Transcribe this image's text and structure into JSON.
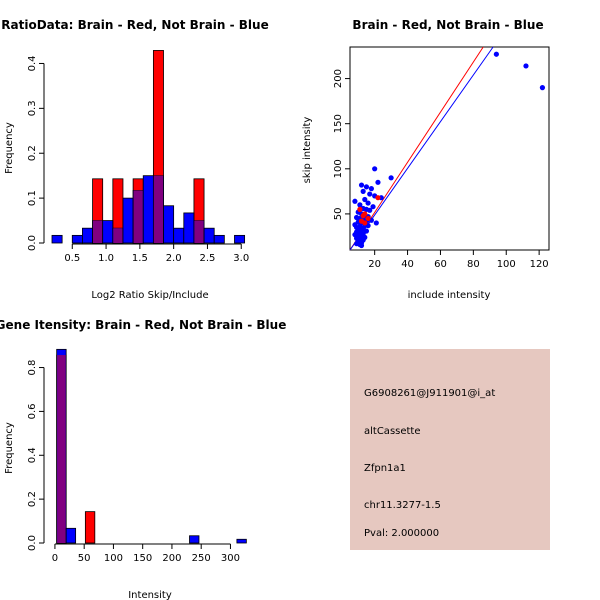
{
  "colors": {
    "brain": "#ff0000",
    "not_brain": "#0000ff",
    "overlap": "#800080",
    "info_bg": "#e6c8c0",
    "pval": "#cc0000"
  },
  "chart_data": [
    {
      "id": "ratio_hist",
      "type": "bar",
      "title": "RatioData: Brain - Red, Not Brain - Blue",
      "xlabel": "Log2 Ratio Skip/Include",
      "ylabel": "Frequency",
      "xlim": [
        0.2,
        3.1
      ],
      "ylim": [
        0,
        0.43
      ],
      "xticks": [
        0.5,
        1.0,
        1.5,
        2.0,
        2.5,
        3.0
      ],
      "xtick_labels": [
        "0.5",
        "1.0",
        "1.5",
        "2.0",
        "2.5",
        "3.0"
      ],
      "yticks": [
        0.0,
        0.1,
        0.2,
        0.3,
        0.4
      ],
      "ytick_labels": [
        "0.0",
        "0.1",
        "0.2",
        "0.3",
        "0.4"
      ],
      "bin_width": 0.15,
      "series": [
        {
          "name": "Brain",
          "color_key": "brain",
          "bins": [
            {
              "x0": 0.8,
              "value": 0.143
            },
            {
              "x0": 1.1,
              "value": 0.143
            },
            {
              "x0": 1.4,
              "value": 0.143
            },
            {
              "x0": 1.7,
              "value": 0.429
            },
            {
              "x0": 2.3,
              "value": 0.143
            }
          ]
        },
        {
          "name": "Not Brain",
          "color_key": "not_brain",
          "bins": [
            {
              "x0": 0.2,
              "value": 0.017
            },
            {
              "x0": 0.5,
              "value": 0.017
            },
            {
              "x0": 0.65,
              "value": 0.033
            },
            {
              "x0": 0.8,
              "value": 0.05
            },
            {
              "x0": 0.95,
              "value": 0.05
            },
            {
              "x0": 1.1,
              "value": 0.033
            },
            {
              "x0": 1.25,
              "value": 0.1
            },
            {
              "x0": 1.4,
              "value": 0.117
            },
            {
              "x0": 1.55,
              "value": 0.15
            },
            {
              "x0": 1.7,
              "value": 0.15
            },
            {
              "x0": 1.85,
              "value": 0.083
            },
            {
              "x0": 2.0,
              "value": 0.033
            },
            {
              "x0": 2.15,
              "value": 0.067
            },
            {
              "x0": 2.3,
              "value": 0.05
            },
            {
              "x0": 2.45,
              "value": 0.033
            },
            {
              "x0": 2.6,
              "value": 0.017
            },
            {
              "x0": 2.9,
              "value": 0.017
            }
          ]
        }
      ]
    },
    {
      "id": "intensity_scatter",
      "type": "scatter",
      "title": "Brain - Red, Not Brain - Blue",
      "xlabel": "include intensity",
      "ylabel": "skip intensity",
      "xlim": [
        5,
        126
      ],
      "ylim": [
        10,
        235
      ],
      "xticks": [
        20,
        40,
        60,
        80,
        100,
        120
      ],
      "xtick_labels": [
        "20",
        "40",
        "60",
        "80",
        "100",
        "120"
      ],
      "yticks": [
        50,
        100,
        150,
        200
      ],
      "ytick_labels": [
        "50",
        "100",
        "150",
        "200"
      ],
      "series": [
        {
          "name": "Not Brain",
          "color_key": "not_brain",
          "points": [
            [
              94,
              227
            ],
            [
              112,
              214
            ],
            [
              122,
              190
            ],
            [
              20,
              100
            ],
            [
              30,
              90
            ],
            [
              22,
              85
            ],
            [
              12,
              82
            ],
            [
              15,
              80
            ],
            [
              18,
              78
            ],
            [
              13,
              75
            ],
            [
              17,
              72
            ],
            [
              20,
              70
            ],
            [
              24,
              68
            ],
            [
              14,
              66
            ],
            [
              8,
              64
            ],
            [
              16,
              62
            ],
            [
              11,
              60
            ],
            [
              19,
              58
            ],
            [
              13,
              56
            ],
            [
              15,
              55
            ],
            [
              17,
              54
            ],
            [
              10,
              52
            ],
            [
              12,
              50
            ],
            [
              14,
              48
            ],
            [
              16,
              47
            ],
            [
              9,
              46
            ],
            [
              11,
              45
            ],
            [
              13,
              44
            ],
            [
              18,
              43
            ],
            [
              15,
              42
            ],
            [
              10,
              41
            ],
            [
              12,
              40
            ],
            [
              21,
              40
            ],
            [
              8,
              38
            ],
            [
              14,
              38
            ],
            [
              16,
              37
            ],
            [
              11,
              36
            ],
            [
              9,
              35
            ],
            [
              13,
              34
            ],
            [
              10,
              33
            ],
            [
              12,
              32
            ],
            [
              15,
              31
            ],
            [
              9,
              30
            ],
            [
              11,
              29
            ],
            [
              13,
              28
            ],
            [
              8,
              27
            ],
            [
              10,
              26
            ],
            [
              12,
              25
            ],
            [
              14,
              24
            ],
            [
              9,
              23
            ],
            [
              11,
              22
            ],
            [
              13,
              21
            ],
            [
              10,
              20
            ],
            [
              12,
              18
            ],
            [
              9,
              17
            ],
            [
              11,
              16
            ],
            [
              12,
              15
            ]
          ]
        },
        {
          "name": "Brain",
          "color_key": "brain",
          "points": [
            [
              11,
              55
            ],
            [
              14,
              50
            ],
            [
              13,
              48
            ],
            [
              16,
              45
            ],
            [
              12,
              42
            ],
            [
              14,
              40
            ],
            [
              22,
              68
            ]
          ]
        }
      ],
      "fit_lines": [
        {
          "name": "Brain fit",
          "color_key": "brain",
          "x1": 5,
          "y1": 10,
          "x2": 86,
          "y2": 235
        },
        {
          "name": "Not Brain fit",
          "color_key": "not_brain",
          "x1": 5,
          "y1": 10,
          "x2": 92,
          "y2": 235
        }
      ]
    },
    {
      "id": "gene_hist",
      "type": "bar",
      "title": "Gene Itensity: Brain - Red, Not Brain - Blue",
      "xlabel": "Intensity",
      "ylabel": "Frequency",
      "xlim": [
        -5,
        330
      ],
      "ylim": [
        0,
        0.88
      ],
      "xticks": [
        0,
        50,
        100,
        150,
        200,
        250,
        300
      ],
      "xtick_labels": [
        "0",
        "50",
        "100",
        "150",
        "200",
        "250",
        "300"
      ],
      "yticks": [
        0.0,
        0.2,
        0.4,
        0.6,
        0.8
      ],
      "ytick_labels": [
        "0.0",
        "0.2",
        "0.4",
        "0.6",
        "0.8"
      ],
      "bin_width": 16.2,
      "series": [
        {
          "name": "Brain",
          "color_key": "brain",
          "bins": [
            {
              "x0": 3,
              "value": 0.857
            },
            {
              "x0": 52,
              "value": 0.143
            }
          ]
        },
        {
          "name": "Not Brain",
          "color_key": "not_brain",
          "bins": [
            {
              "x0": 3,
              "value": 0.883
            },
            {
              "x0": 19.2,
              "value": 0.067
            },
            {
              "x0": 230,
              "value": 0.033
            },
            {
              "x0": 311,
              "value": 0.017
            }
          ]
        }
      ]
    }
  ],
  "info_panel": {
    "probe_id": "G6908261@J911901@i_at",
    "event_type": "altCassette",
    "gene": "Zfpn1a1",
    "location": "chr11.3277-1.5",
    "pval": "Pval: 2.000000"
  }
}
